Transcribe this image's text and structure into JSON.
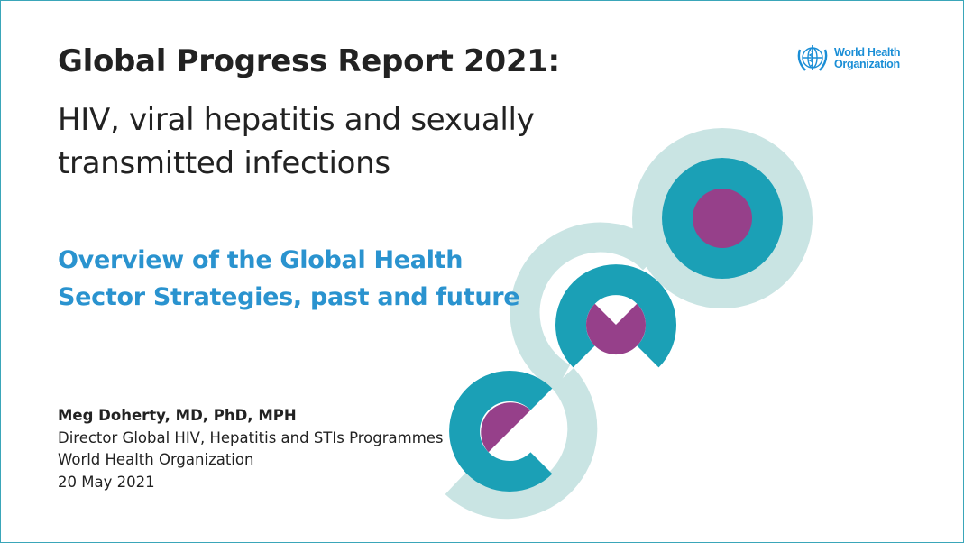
{
  "title": "Global Progress Report 2021:",
  "subtitle_lines": [
    "HIV, viral hepatitis and sexually",
    "transmitted infections"
  ],
  "overview_lines": [
    "Overview of the Global Health",
    "Sector Strategies, past and future"
  ],
  "presenter": {
    "name": "Meg Doherty, MD, PhD, MPH",
    "role": "Director Global HIV, Hepatitis and STIs Programmes",
    "organization": "World Health Organization",
    "date": "20 May 2021"
  },
  "logo": {
    "line1": "World Health",
    "line2": "Organization",
    "icon": "who-emblem-icon"
  },
  "colors": {
    "accent_blue": "#2a93cf",
    "light_teal": "#c9e4e3",
    "teal": "#1ba0b6",
    "purple": "#96408a"
  }
}
